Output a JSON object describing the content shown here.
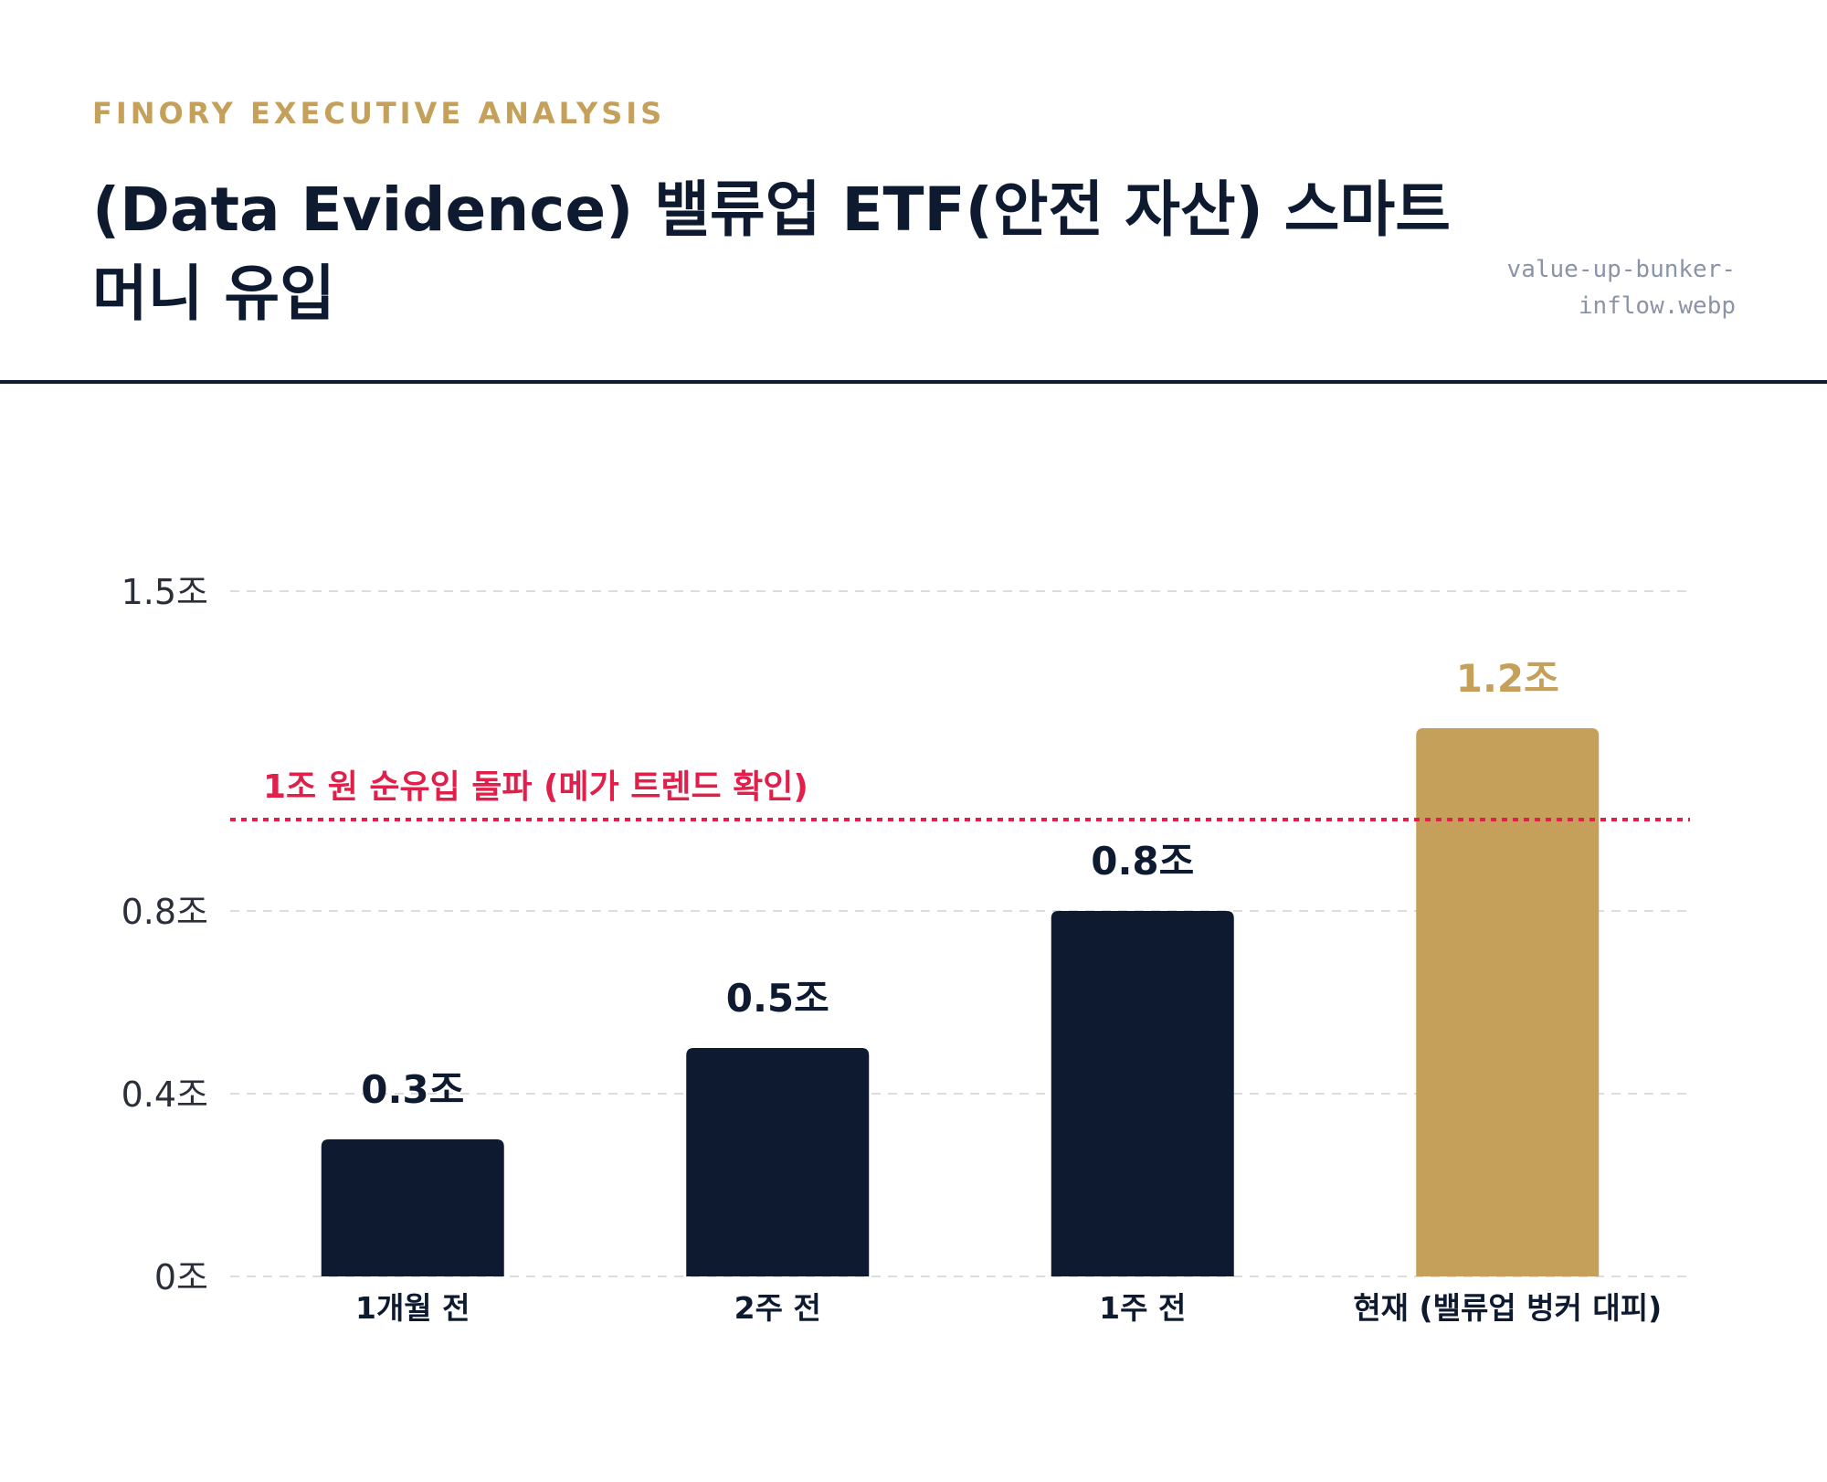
{
  "header": {
    "eyebrow": "FINORY EXECUTIVE ANALYSIS",
    "title": "(Data Evidence) 밸류업 ETF(안전 자산) 스마트머니 유입",
    "filename": "value-up-bunker-inflow.webp"
  },
  "colors": {
    "navy": "#0d1a30",
    "gold": "#c4a05a",
    "threshold": "#e0204a",
    "grid": "#dcdcdc",
    "axis_text": "#2a2f3a",
    "filename": "#8a94a6"
  },
  "chart_data": {
    "type": "bar",
    "categories": [
      "1개월 전",
      "2주 전",
      "1주 전",
      "현재 (밸류업 벙커 대피)"
    ],
    "values": [
      0.3,
      0.5,
      0.8,
      1.2
    ],
    "data_labels": [
      "0.3조",
      "0.5조",
      "0.8조",
      "1.2조"
    ],
    "highlight_index": 3,
    "yticks": [
      {
        "value": 0,
        "label": "0조"
      },
      {
        "value": 0.4,
        "label": "0.4조"
      },
      {
        "value": 0.8,
        "label": "0.8조"
      },
      {
        "value": 1.5,
        "label": "1.5조"
      }
    ],
    "ylim": [
      0,
      1.5
    ],
    "grid": true,
    "threshold": {
      "value": 1.0,
      "label": "1조 원 순유입 돌파 (메가 트렌드 확인)"
    }
  }
}
